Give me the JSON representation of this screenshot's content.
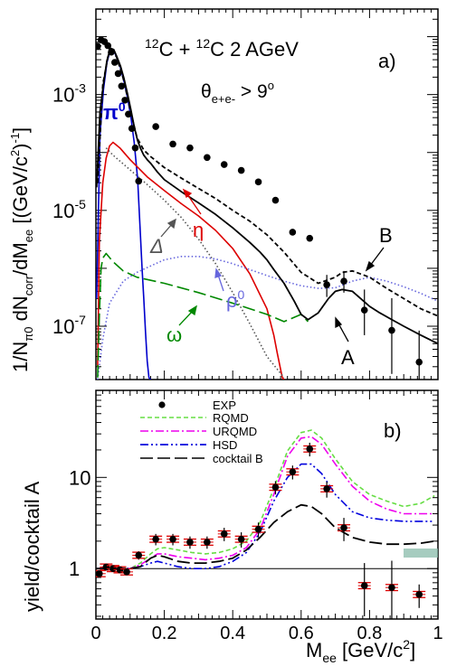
{
  "figure": {
    "xlabel_main": "M",
    "xlabel_sub": "ee",
    "xlabel_unit": " [GeV/c",
    "xlabel_unit_sup": "2",
    "xlabel_unit_close": "]"
  },
  "chart_data": [
    {
      "id": "a",
      "type": "line",
      "panel_label": "a)",
      "title_parts": [
        "12",
        "C + ",
        "12",
        "C  2 AGeV"
      ],
      "cut_parts": [
        "θ",
        "e+e-",
        " > 9",
        "o"
      ],
      "ylabel_parts": [
        "1/N",
        "π0",
        " dN",
        "corr",
        "/dM",
        "ee",
        "  [(GeV/c",
        "2",
        ")",
        "-1",
        "]"
      ],
      "xlim": [
        0,
        1
      ],
      "ylim": [
        1.2e-08,
        0.03
      ],
      "yscale": "log",
      "yticks": [
        {
          "value": 0.001,
          "label": "10",
          "exp": "-3"
        },
        {
          "value": 1e-05,
          "label": "10",
          "exp": "-5"
        },
        {
          "value": 1e-07,
          "label": "10",
          "exp": "-7"
        }
      ],
      "annotations": {
        "pi0": {
          "text": "π",
          "sup": "0",
          "color": "#0000cc"
        },
        "eta": {
          "text": "η",
          "color": "#dd0000"
        },
        "delta": {
          "text": "Δ",
          "color": "#555555"
        },
        "rho": {
          "text": "ρ",
          "sup": "0",
          "color": "#6666dd"
        },
        "omega": {
          "text": "ω",
          "color": "#008800"
        },
        "A": {
          "text": "A",
          "color": "#000000"
        },
        "B": {
          "text": "B",
          "color": "#000000"
        }
      },
      "series": [
        {
          "name": "EXP",
          "style": "points",
          "color": "#000000",
          "x": [
            0.005,
            0.015,
            0.025,
            0.035,
            0.045,
            0.055,
            0.065,
            0.075,
            0.085,
            0.095,
            0.105,
            0.115,
            0.125,
            0.175,
            0.225,
            0.275,
            0.325,
            0.375,
            0.425,
            0.475,
            0.525,
            0.575,
            0.625,
            0.675,
            0.725,
            0.785,
            0.865,
            0.945
          ],
          "y": [
            0.0068,
            0.0088,
            0.0082,
            0.007,
            0.0054,
            0.0036,
            0.0023,
            0.0014,
            0.0008,
            0.00046,
            0.00026,
            0.00012,
            3.2e-05,
            0.00028,
            0.00014,
            0.00012,
            8.2e-05,
            6.2e-05,
            4.9e-05,
            3.1e-05,
            1.5e-05,
            4.2e-06,
            3.3e-06,
            5.2e-07,
            6e-07,
            1.9e-07,
            8.5e-08,
            2.4e-08
          ],
          "yerr_lo": [
            0,
            0,
            0,
            0,
            0,
            0,
            0,
            0,
            0,
            0,
            0,
            0,
            0,
            0,
            0,
            0,
            0,
            0,
            0,
            0,
            0,
            0,
            0,
            2e-07,
            2.2e-07,
            1.2e-07,
            7e-08,
            1.6e-08
          ],
          "yerr_hi": [
            0,
            0,
            0,
            0,
            0,
            0,
            0,
            0,
            0,
            0,
            0,
            0,
            0,
            0,
            0,
            0,
            0,
            0,
            0,
            0,
            0,
            0,
            0,
            2.5e-07,
            3e-07,
            2.4e-07,
            2.2e-07,
            6e-08
          ]
        },
        {
          "name": "π0",
          "style": "solid",
          "color": "#0000cc",
          "x": [
            0.002,
            0.012,
            0.022,
            0.032,
            0.042,
            0.052,
            0.062,
            0.072,
            0.082,
            0.092,
            0.102,
            0.112,
            0.122,
            0.13,
            0.135,
            0.14,
            0.145,
            0.15,
            0.155,
            0.16
          ],
          "y": [
            3e-07,
            0.0002,
            0.0012,
            0.0035,
            0.006,
            0.0058,
            0.0042,
            0.0029,
            0.0017,
            0.0009,
            0.00042,
            0.00015,
            3.5e-05,
            4e-06,
            1e-06,
            3e-07,
            8e-08,
            2.5e-08,
            1.3e-08,
            1.2e-08
          ]
        },
        {
          "name": "η",
          "style": "solid",
          "color": "#dd0000",
          "x": [
            0.005,
            0.01,
            0.02,
            0.03,
            0.04,
            0.05,
            0.07,
            0.1,
            0.15,
            0.2,
            0.25,
            0.3,
            0.35,
            0.4,
            0.45,
            0.5,
            0.52,
            0.53,
            0.54,
            0.545,
            0.55
          ],
          "y": [
            2e-08,
            3e-06,
            3e-05,
            8e-05,
            0.00013,
            0.00015,
            0.00012,
            7.5e-05,
            3.8e-05,
            2.2e-05,
            1.3e-05,
            8e-06,
            4.5e-06,
            2.2e-06,
            8e-07,
            2e-07,
            7e-08,
            3.5e-08,
            1.8e-08,
            1.3e-08,
            1.2e-08
          ]
        },
        {
          "name": "Δ",
          "style": "dotted",
          "color": "#555555",
          "x": [
            0.03,
            0.05,
            0.1,
            0.15,
            0.2,
            0.25,
            0.3,
            0.35,
            0.4,
            0.45,
            0.5,
            0.55
          ],
          "y": [
            0.00012,
            9e-05,
            5e-05,
            2.8e-05,
            1.5e-05,
            7.5e-06,
            3.2e-06,
            1.2e-06,
            3.8e-07,
            1.1e-07,
            3e-08,
            1.3e-08
          ]
        },
        {
          "name": "ρ0",
          "style": "dotted",
          "color": "#6666dd",
          "x": [
            0.005,
            0.02,
            0.04,
            0.08,
            0.12,
            0.16,
            0.2,
            0.25,
            0.3,
            0.35,
            0.4,
            0.45,
            0.5,
            0.55,
            0.6,
            0.65,
            0.7,
            0.75,
            0.8,
            0.85,
            0.9,
            0.95,
            1.0
          ],
          "y": [
            1.2e-08,
            6e-08,
            2.5e-07,
            6e-07,
            8.5e-07,
            1.1e-06,
            1.4e-06,
            1.6e-06,
            1.6e-06,
            1.45e-06,
            1.2e-06,
            9.5e-07,
            7.5e-07,
            6e-07,
            5e-07,
            4.5e-07,
            4.6e-07,
            6e-07,
            7e-07,
            6e-07,
            4.8e-07,
            3.7e-07,
            2.7e-07
          ]
        },
        {
          "name": "ω",
          "style": "longdash",
          "color": "#008800",
          "x": [
            0.005,
            0.01,
            0.015,
            0.02,
            0.03,
            0.05,
            0.08,
            0.12,
            0.2,
            0.3,
            0.4,
            0.5,
            0.55,
            0.6,
            0.62
          ],
          "y": [
            1.3e-08,
            1.5e-07,
            1e-06,
            1.5e-06,
            1.8e-06,
            1.3e-06,
            9e-07,
            7e-07,
            5.5e-07,
            3.8e-07,
            2.5e-07,
            1.6e-07,
            1.2e-07,
            1.6e-07,
            1.2e-07
          ]
        },
        {
          "name": "A",
          "style": "solid",
          "color": "#000000",
          "x": [
            0.002,
            0.012,
            0.022,
            0.032,
            0.042,
            0.052,
            0.062,
            0.072,
            0.082,
            0.092,
            0.102,
            0.112,
            0.122,
            0.13,
            0.14,
            0.15,
            0.16,
            0.18,
            0.2,
            0.25,
            0.3,
            0.35,
            0.4,
            0.45,
            0.48,
            0.5,
            0.52,
            0.55,
            0.58,
            0.6,
            0.62,
            0.65,
            0.68,
            0.7,
            0.72,
            0.75,
            0.78,
            0.8,
            0.83,
            0.86,
            0.9,
            0.95,
            1.0
          ],
          "y": [
            2.5e-05,
            0.0005,
            0.0015,
            0.0038,
            0.0063,
            0.006,
            0.0044,
            0.0031,
            0.0019,
            0.00105,
            0.00055,
            0.00028,
            0.00016,
            0.00012,
            9e-05,
            7.5e-05,
            6.5e-05,
            4.6e-05,
            3.4e-05,
            2.1e-05,
            1.35e-05,
            8.5e-06,
            5e-06,
            2.8e-06,
            1.9e-06,
            1.4e-06,
            9.5e-07,
            5.5e-07,
            2.7e-07,
            1.6e-07,
            1.3e-07,
            1.7e-07,
            3e-07,
            4e-07,
            4.3e-07,
            4e-07,
            2.8e-07,
            2.2e-07,
            1.7e-07,
            1.35e-07,
            1e-07,
            7e-08,
            5e-08
          ]
        },
        {
          "name": "B",
          "style": "dashed",
          "color": "#000000",
          "x": [
            0.005,
            0.02,
            0.04,
            0.06,
            0.08,
            0.1,
            0.12,
            0.14,
            0.16,
            0.2,
            0.25,
            0.3,
            0.35,
            0.4,
            0.45,
            0.5,
            0.55,
            0.6,
            0.65,
            0.7,
            0.72,
            0.75,
            0.8,
            0.85,
            0.9,
            0.95,
            1.0
          ],
          "y": [
            3e-05,
            0.0015,
            0.0063,
            0.0045,
            0.0019,
            0.00056,
            0.00018,
            0.00011,
            8.5e-05,
            5.5e-05,
            3.6e-05,
            2.4e-05,
            1.6e-05,
            1e-05,
            6.5e-06,
            3.8e-06,
            1.9e-06,
            8.5e-07,
            5.5e-07,
            7e-07,
            8.5e-07,
            9e-07,
            7e-07,
            4.5e-07,
            3e-07,
            2e-07,
            1.5e-07
          ]
        }
      ]
    },
    {
      "id": "b",
      "type": "line",
      "panel_label": "b)",
      "ylabel": "yield/cocktail A",
      "xlim": [
        0,
        1
      ],
      "ylim": [
        0.28,
        90
      ],
      "yscale": "log",
      "xticks": [
        {
          "value": 0,
          "label": "0"
        },
        {
          "value": 0.2,
          "label": "0.2"
        },
        {
          "value": 0.4,
          "label": "0.4"
        },
        {
          "value": 0.6,
          "label": "0.6"
        },
        {
          "value": 0.8,
          "label": "0.8"
        },
        {
          "value": 1,
          "label": "1"
        }
      ],
      "yticks": [
        {
          "value": 1,
          "label": "1"
        },
        {
          "value": 10,
          "label": "10"
        }
      ],
      "reference_line": 1,
      "legend": {
        "placement": "top-center",
        "entries": [
          {
            "label": "EXP",
            "marker": "dot",
            "color": "#000000"
          },
          {
            "label": "RQMD",
            "style": "dashed",
            "color": "#66dd44"
          },
          {
            "label": "URQMD",
            "style": "dashdot",
            "color": "#ee00ee"
          },
          {
            "label": "HSD",
            "style": "dashdotdot",
            "color": "#0000dd"
          },
          {
            "label": "cocktail B",
            "style": "longdash",
            "color": "#000000"
          }
        ]
      },
      "series": [
        {
          "name": "EXP",
          "style": "points",
          "color": "#000000",
          "syserr_color": "#dd0000",
          "x": [
            0.01,
            0.03,
            0.05,
            0.07,
            0.09,
            0.125,
            0.175,
            0.225,
            0.275,
            0.325,
            0.375,
            0.425,
            0.475,
            0.525,
            0.575,
            0.625,
            0.675,
            0.725,
            0.785,
            0.865,
            0.945
          ],
          "y": [
            0.88,
            1.04,
            1.0,
            0.97,
            0.92,
            1.4,
            2.1,
            2.1,
            1.95,
            1.95,
            2.4,
            2.1,
            2.7,
            7.8,
            11.5,
            20.5,
            7.5,
            2.8,
            0.65,
            0.62,
            0.52
          ],
          "yerr_lo": [
            0.08,
            0.08,
            0.07,
            0.07,
            0.07,
            0.15,
            0.3,
            0.3,
            0.3,
            0.3,
            0.4,
            0.4,
            0.5,
            1.3,
            2.0,
            3.5,
            1.5,
            0.8,
            0.35,
            0.4,
            0.15
          ],
          "yerr_hi": [
            0.08,
            0.08,
            0.07,
            0.07,
            0.07,
            0.15,
            0.3,
            0.3,
            0.3,
            0.3,
            0.4,
            0.4,
            0.5,
            1.3,
            2.0,
            3.5,
            1.5,
            0.8,
            0.5,
            0.6,
            0.15
          ]
        },
        {
          "name": "RQMD",
          "style": "dashed",
          "color": "#66dd44",
          "x": [
            0,
            0.05,
            0.1,
            0.13,
            0.16,
            0.18,
            0.2,
            0.24,
            0.28,
            0.32,
            0.36,
            0.4,
            0.44,
            0.48,
            0.52,
            0.56,
            0.6,
            0.63,
            0.66,
            0.7,
            0.75,
            0.8,
            0.85,
            0.9,
            0.95,
            0.99
          ],
          "y": [
            1.0,
            1.0,
            1.0,
            1.15,
            1.45,
            1.65,
            1.7,
            1.6,
            1.5,
            1.45,
            1.5,
            1.65,
            2.0,
            3.2,
            7.5,
            19.5,
            31,
            33,
            27,
            16,
            9,
            6.5,
            5.5,
            4.8,
            5.2,
            6.3
          ]
        },
        {
          "name": "URQMD",
          "style": "dashdot",
          "color": "#ee00ee",
          "x": [
            0,
            0.05,
            0.1,
            0.13,
            0.16,
            0.18,
            0.2,
            0.24,
            0.28,
            0.32,
            0.36,
            0.4,
            0.44,
            0.48,
            0.52,
            0.56,
            0.6,
            0.63,
            0.66,
            0.7,
            0.75,
            0.8,
            0.85,
            0.9,
            0.95,
            0.99
          ],
          "y": [
            1.0,
            1.0,
            1.0,
            1.1,
            1.3,
            1.45,
            1.45,
            1.35,
            1.3,
            1.25,
            1.3,
            1.4,
            1.7,
            2.7,
            6.5,
            17,
            27,
            28,
            23,
            14,
            8,
            5.5,
            4.5,
            4.0,
            4.0,
            4.0
          ]
        },
        {
          "name": "HSD",
          "style": "dashdotdot",
          "color": "#0000dd",
          "x": [
            0,
            0.05,
            0.1,
            0.13,
            0.16,
            0.18,
            0.2,
            0.24,
            0.28,
            0.32,
            0.36,
            0.4,
            0.44,
            0.48,
            0.52,
            0.56,
            0.6,
            0.63,
            0.66,
            0.7,
            0.75,
            0.8,
            0.85,
            0.9,
            0.95,
            0.99
          ],
          "y": [
            1.0,
            1.0,
            1.0,
            1.05,
            1.15,
            1.2,
            1.15,
            1.05,
            1.0,
            1.0,
            1.05,
            1.2,
            1.5,
            2.5,
            5.5,
            10,
            14,
            14,
            11,
            6.5,
            4.2,
            3.6,
            3.4,
            3.3,
            3.3,
            3.3
          ]
        },
        {
          "name": "cocktail B",
          "style": "longdash",
          "color": "#000000",
          "x": [
            0,
            0.05,
            0.1,
            0.13,
            0.16,
            0.18,
            0.2,
            0.24,
            0.28,
            0.32,
            0.36,
            0.4,
            0.44,
            0.48,
            0.52,
            0.56,
            0.6,
            0.63,
            0.66,
            0.7,
            0.75,
            0.8,
            0.85,
            0.9,
            0.95,
            0.99
          ],
          "y": [
            1.0,
            1.0,
            1.0,
            1.05,
            1.3,
            1.4,
            1.35,
            1.2,
            1.15,
            1.15,
            1.2,
            1.3,
            1.6,
            2.2,
            3.2,
            4.2,
            5.0,
            4.8,
            4.0,
            2.8,
            2.2,
            1.95,
            1.85,
            1.85,
            1.9,
            2.0
          ]
        }
      ]
    }
  ]
}
